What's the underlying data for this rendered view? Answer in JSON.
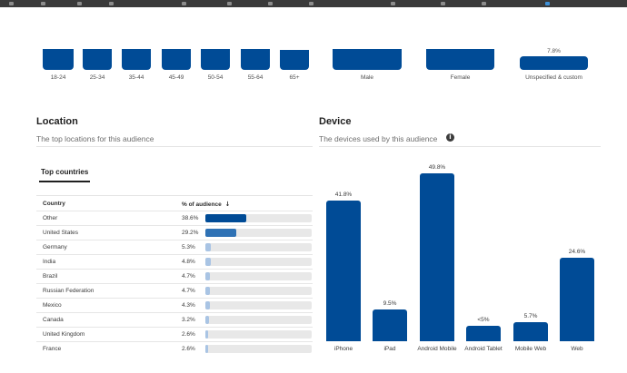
{
  "age_gender": {
    "age_labels": [
      "18-24",
      "25-34",
      "35-44",
      "45-49",
      "50-54",
      "55-64",
      "65+"
    ],
    "gender_labels": [
      "Male",
      "Female",
      "Unspecified & custom"
    ],
    "gender_value_label": "7.8%"
  },
  "location": {
    "title": "Location",
    "subtitle": "The top locations for this audience",
    "tab_label": "Top countries",
    "col_country": "Country",
    "col_pct": "% of audience",
    "sort_icon": "arrow-down-icon",
    "rows": [
      {
        "country": "Other",
        "pct_label": "38.6%",
        "pct": 38.6,
        "color": "#004b96"
      },
      {
        "country": "United States",
        "pct_label": "29.2%",
        "pct": 29.2,
        "color": "#2f72b5"
      },
      {
        "country": "Germany",
        "pct_label": "5.3%",
        "pct": 5.3,
        "color": "#a9c4e4"
      },
      {
        "country": "India",
        "pct_label": "4.8%",
        "pct": 4.8,
        "color": "#a9c4e4"
      },
      {
        "country": "Brazil",
        "pct_label": "4.7%",
        "pct": 4.7,
        "color": "#a9c4e4"
      },
      {
        "country": "Russian Federation",
        "pct_label": "4.7%",
        "pct": 4.7,
        "color": "#a9c4e4"
      },
      {
        "country": "Mexico",
        "pct_label": "4.3%",
        "pct": 4.3,
        "color": "#a9c4e4"
      },
      {
        "country": "Canada",
        "pct_label": "3.2%",
        "pct": 3.2,
        "color": "#a9c4e4"
      },
      {
        "country": "United Kingdom",
        "pct_label": "2.6%",
        "pct": 2.6,
        "color": "#a9c4e4"
      },
      {
        "country": "France",
        "pct_label": "2.6%",
        "pct": 2.6,
        "color": "#a9c4e4"
      }
    ]
  },
  "device": {
    "title": "Device",
    "subtitle": "The devices used by this audience",
    "info_icon": "info-icon",
    "info_glyph": "i"
  },
  "chart_data": {
    "type": "bar",
    "categories": [
      "iPhone",
      "iPad",
      "Android Mobile",
      "Android Tablet",
      "Mobile Web",
      "Web"
    ],
    "values": [
      41.8,
      9.5,
      49.8,
      4.5,
      5.7,
      24.6
    ],
    "value_labels": [
      "41.8%",
      "9.5%",
      "49.8%",
      "<5%",
      "5.7%",
      "24.6%"
    ],
    "ylim": [
      0,
      50
    ],
    "color": "#004b96"
  },
  "colors": {
    "accent": "#004b96",
    "track": "#e8e8e8"
  }
}
